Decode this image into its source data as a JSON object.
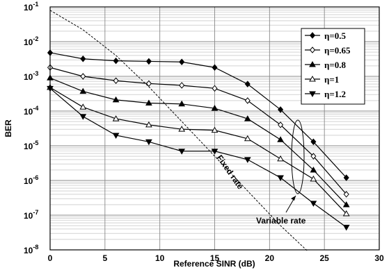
{
  "chart_data": {
    "type": "line",
    "xlabel": "Reference SINR (dB)",
    "ylabel": "BER",
    "xlim": [
      0,
      30
    ],
    "ylim_log10": [
      -8,
      -1
    ],
    "log_scale_y": true,
    "grid": true,
    "legend_position": "top-right",
    "x_ticks": [
      "0",
      "5",
      "10",
      "15",
      "20",
      "25",
      "30"
    ],
    "y_ticks": [
      {
        "base": "10",
        "exp": "-1"
      },
      {
        "base": "10",
        "exp": "-2"
      },
      {
        "base": "10",
        "exp": "-3"
      },
      {
        "base": "10",
        "exp": "-4"
      },
      {
        "base": "10",
        "exp": "-5"
      },
      {
        "base": "10",
        "exp": "-6"
      },
      {
        "base": "10",
        "exp": "-7"
      },
      {
        "base": "10",
        "exp": "-8"
      }
    ],
    "x": [
      0,
      3,
      6,
      9,
      12,
      15,
      18,
      21,
      24,
      27
    ],
    "series": [
      {
        "name": "η=0.5",
        "marker": "diamond-filled",
        "values": [
          0.0048,
          0.0032,
          0.0028,
          0.0027,
          0.0026,
          0.0018,
          0.0006,
          0.00011,
          1.3e-05,
          1.2e-06
        ]
      },
      {
        "name": "η=0.65",
        "marker": "diamond-open",
        "values": [
          0.0018,
          0.001,
          0.00075,
          0.00062,
          0.00055,
          0.00045,
          0.0002,
          4e-05,
          5e-06,
          4e-07
        ]
      },
      {
        "name": "η=0.8",
        "marker": "triangle-up-filled",
        "values": [
          0.0009,
          0.00037,
          0.00021,
          0.00017,
          0.00016,
          0.00012,
          6e-05,
          1.5e-05,
          2e-06,
          2e-07
        ]
      },
      {
        "name": "η=1",
        "marker": "triangle-up-open",
        "values": [
          0.00048,
          0.00013,
          6e-05,
          4e-05,
          3e-05,
          2.8e-05,
          1.6e-05,
          4.2e-06,
          1.1e-06,
          1.1e-07
        ]
      },
      {
        "name": "η=1.2",
        "marker": "triangle-down-filled",
        "values": [
          0.00045,
          7e-05,
          2e-05,
          1.3e-05,
          7e-06,
          7e-06,
          4e-06,
          1.2e-06,
          2.2e-07,
          4.5e-08
        ]
      }
    ],
    "fixed_rate_curve": {
      "x": [
        0,
        3,
        6,
        9,
        12,
        15,
        18,
        21,
        23.5
      ],
      "values": [
        0.08,
        0.022,
        0.004,
        0.0005,
        5e-05,
        5e-06,
        5e-07,
        5e-08,
        9e-09
      ]
    },
    "annotations": {
      "fixed_rate": "Fixed rate",
      "variable_rate": "Variable rate"
    }
  }
}
